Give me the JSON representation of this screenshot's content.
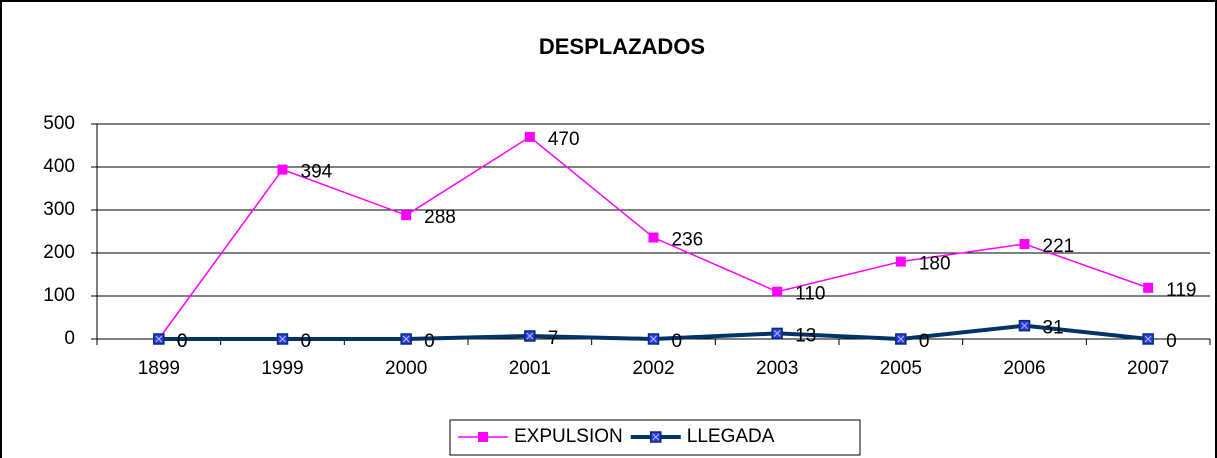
{
  "chart_data": {
    "type": "line",
    "title": "DESPLAZADOS",
    "categories": [
      "1899",
      "1999",
      "2000",
      "2001",
      "2002",
      "2003",
      "2005",
      "2006",
      "2007"
    ],
    "series": [
      {
        "name": "EXPULSION",
        "color": "#ff00ff",
        "values": [
          0,
          394,
          288,
          470,
          236,
          110,
          180,
          221,
          119
        ]
      },
      {
        "name": "LLEGADA",
        "color": "#003366",
        "values": [
          0,
          0,
          0,
          7,
          0,
          13,
          0,
          31,
          0
        ]
      }
    ],
    "ylim": [
      0,
      500
    ],
    "yticks": [
      0,
      100,
      200,
      300,
      400,
      500
    ],
    "grid": true,
    "legend": "bottom"
  }
}
